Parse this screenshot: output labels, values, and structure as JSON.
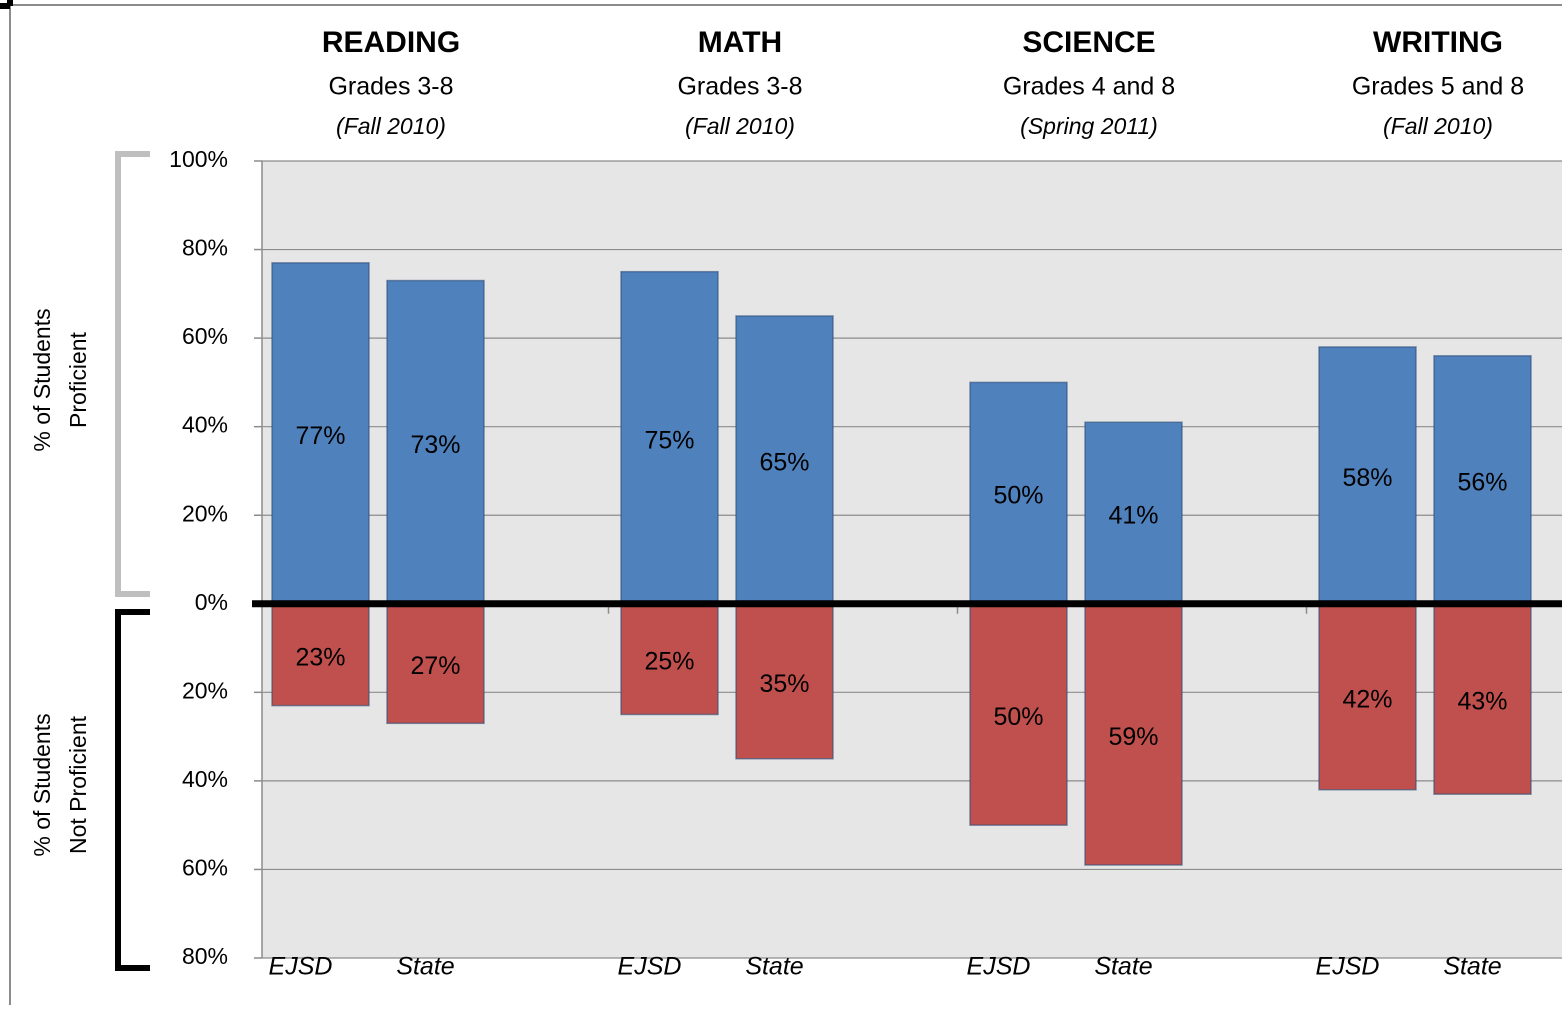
{
  "chart_data": {
    "type": "bar",
    "groups": [
      {
        "subject": "READING",
        "grades": "Grades 3-8",
        "period": "(Fall 2010)"
      },
      {
        "subject": "MATH",
        "grades": "Grades 3-8",
        "period": "(Fall 2010)"
      },
      {
        "subject": "SCIENCE",
        "grades": "Grades 4 and 8",
        "period": "(Spring 2011)"
      },
      {
        "subject": "WRITING",
        "grades": "Grades 5 and 8",
        "period": "(Fall 2010)"
      }
    ],
    "categories": [
      "EJSD",
      "State",
      "EJSD",
      "State",
      "EJSD",
      "State",
      "EJSD",
      "State"
    ],
    "y_label_top": "% of Students Proficient",
    "y_label_bottom": "% of Students Not Proficient",
    "series": [
      {
        "color": "#4f81bd",
        "values": [
          77,
          73,
          75,
          65,
          50,
          41,
          58,
          56
        ],
        "value_labels": [
          "77%",
          "73%",
          "75%",
          "65%",
          "50%",
          "41%",
          "58%",
          "56%"
        ]
      },
      {
        "color": "#c0504d",
        "values": [
          -23,
          -27,
          -25,
          -35,
          -50,
          -59,
          -42,
          -43
        ],
        "value_labels": [
          "23%",
          "27%",
          "25%",
          "35%",
          "50%",
          "59%",
          "42%",
          "43%"
        ]
      }
    ],
    "ylim": [
      -80,
      100
    ],
    "yticks": [
      {
        "value": -80,
        "label": "80%"
      },
      {
        "value": -60,
        "label": "60%"
      },
      {
        "value": -40,
        "label": "40%"
      },
      {
        "value": -20,
        "label": "20%"
      },
      {
        "value": 0,
        "label": "0%"
      },
      {
        "value": 20,
        "label": "20%"
      },
      {
        "value": 40,
        "label": "40%"
      },
      {
        "value": 60,
        "label": "60%"
      },
      {
        "value": 80,
        "label": "80%"
      },
      {
        "value": 100,
        "label": "100%"
      }
    ],
    "grid": true
  }
}
